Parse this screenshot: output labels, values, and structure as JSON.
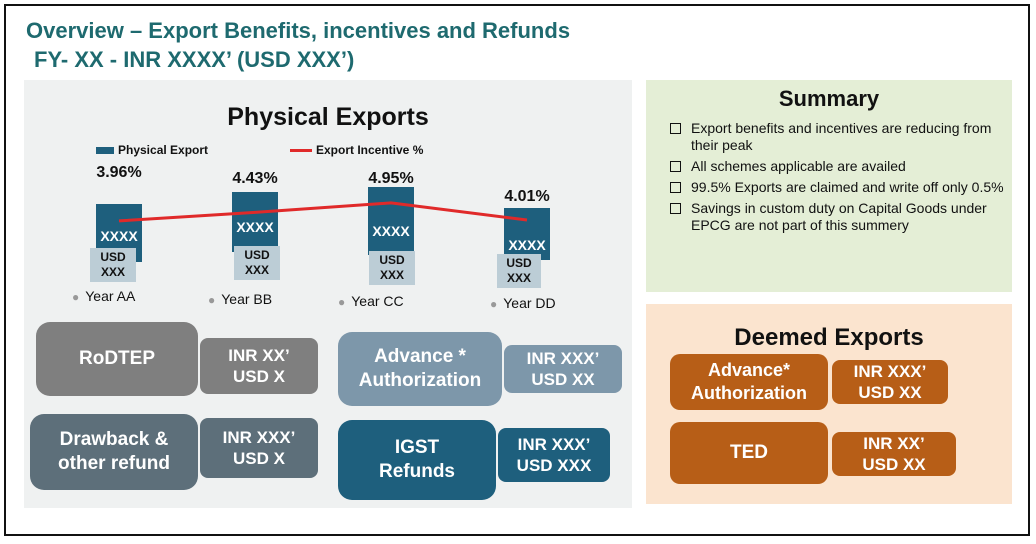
{
  "header": {
    "title_line1": "Overview  – Export Benefits, incentives and Refunds",
    "title_line2": "FY-  XX - INR XXXX’ (USD XXX’)"
  },
  "physical": {
    "title": "Physical Exports",
    "legend_bar": "Physical Export",
    "legend_line": "Export Incentive %"
  },
  "chart_data": {
    "type": "bar",
    "categories": [
      "Year AA",
      "Year BB",
      "Year CC",
      "Year DD"
    ],
    "series": [
      {
        "name": "Physical Export",
        "type": "bar",
        "labels": [
          "XXXX",
          "XXXX",
          "XXXX",
          "XXXX"
        ],
        "usd_labels": [
          "USD XXX",
          "USD XXX",
          "USD XXX",
          "USD XXX"
        ]
      },
      {
        "name": "Export Incentive %",
        "type": "line",
        "values": [
          3.96,
          4.43,
          4.95,
          4.01
        ],
        "labels": [
          "3.96%",
          "4.43%",
          "4.95%",
          "4.01%"
        ]
      }
    ]
  },
  "benefits": [
    {
      "label": "RoDTEP",
      "value": "INR XX’\nUSD X"
    },
    {
      "label": "Advance *\nAuthorization",
      "value": "INR XXX’\nUSD XX"
    },
    {
      "label": "Drawback &\nother refund",
      "value": "INR XXX’\nUSD X"
    },
    {
      "label": "IGST\nRefunds",
      "value": "INR XXX’\nUSD XXX"
    }
  ],
  "summary": {
    "title": "Summary",
    "items": [
      "Export benefits and incentives are reducing from their peak",
      "All schemes applicable are availed",
      "99.5% Exports are claimed and write off only 0.5%",
      "Savings in custom duty on Capital Goods under EPCG  are not part of this summery"
    ]
  },
  "deemed": {
    "title": "Deemed Exports",
    "items": [
      {
        "label": "Advance*\nAuthorization",
        "value": "INR XXX’\nUSD  XX"
      },
      {
        "label": "TED",
        "value": "INR XX’\nUSD XX"
      }
    ]
  },
  "colors": {
    "title": "#1e6a6f",
    "bar": "#1e5f7d",
    "line": "#e02a2a",
    "rodtep": "#7f7f7f",
    "drawback": "#5d6f7a",
    "advance": "#7d97aa",
    "igst": "#1e5f7d",
    "deemed_pill": "#b75e17"
  }
}
